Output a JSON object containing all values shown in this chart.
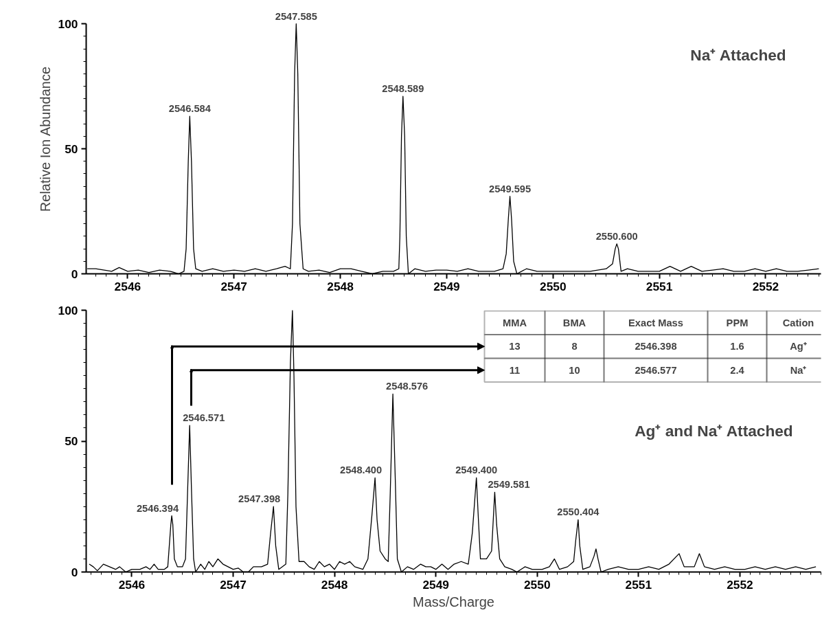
{
  "chart_data": [
    {
      "type": "line",
      "title": "Na⁺ Attached",
      "ylabel": "Relative Ion Abundance",
      "xlim": [
        2545.61,
        2552.52
      ],
      "ylim": [
        0,
        100
      ],
      "xticks": [
        2546,
        2547,
        2548,
        2549,
        2550,
        2551,
        2552
      ],
      "yticks": [
        0,
        50,
        100
      ],
      "grid": false,
      "marker": "none",
      "line_style": "solid",
      "series": [
        {
          "color": "#000000",
          "x": [
            2545.62,
            2545.7,
            2545.78,
            2545.85,
            2545.92,
            2546.0,
            2546.1,
            2546.2,
            2546.3,
            2546.4,
            2546.48,
            2546.53,
            2546.55,
            2546.57,
            2546.584,
            2546.6,
            2546.62,
            2546.64,
            2546.7,
            2546.8,
            2546.9,
            2547.0,
            2547.1,
            2547.2,
            2547.3,
            2547.4,
            2547.48,
            2547.53,
            2547.55,
            2547.57,
            2547.585,
            2547.6,
            2547.62,
            2547.65,
            2547.7,
            2547.8,
            2547.9,
            2548.0,
            2548.1,
            2548.2,
            2548.3,
            2548.4,
            2548.5,
            2548.55,
            2548.56,
            2548.575,
            2548.589,
            2548.605,
            2548.62,
            2548.64,
            2548.7,
            2548.8,
            2548.9,
            2549.0,
            2549.1,
            2549.2,
            2549.3,
            2549.45,
            2549.53,
            2549.56,
            2549.58,
            2549.595,
            2549.61,
            2549.63,
            2549.66,
            2549.75,
            2549.85,
            2549.95,
            2550.05,
            2550.2,
            2550.35,
            2550.5,
            2550.56,
            2550.585,
            2550.6,
            2550.615,
            2550.64,
            2550.7,
            2550.8,
            2550.9,
            2551.0,
            2551.1,
            2551.2,
            2551.3,
            2551.4,
            2551.5,
            2551.6,
            2551.7,
            2551.8,
            2551.9,
            2552.0,
            2552.1,
            2552.2,
            2552.3,
            2552.4,
            2552.5
          ],
          "values": [
            2,
            2,
            1.5,
            1,
            2.5,
            1,
            1.5,
            0.5,
            1.5,
            1,
            0,
            1,
            10,
            45,
            63,
            45,
            10,
            2,
            1,
            2,
            1,
            1.5,
            1,
            2,
            1,
            2,
            3,
            2,
            20,
            80,
            100,
            80,
            20,
            2,
            1,
            1.5,
            0.5,
            2,
            2,
            1,
            0,
            1,
            1,
            2,
            15,
            55,
            71,
            55,
            15,
            0,
            2,
            1,
            1.5,
            1.5,
            1,
            2,
            1,
            1,
            2,
            8,
            22,
            31,
            22,
            5,
            0,
            2,
            1,
            1,
            1,
            1,
            1,
            2,
            4,
            10,
            12,
            10,
            1,
            2,
            1,
            1,
            1,
            3,
            1,
            3,
            1,
            1.5,
            2,
            1,
            1,
            2,
            1,
            2,
            1,
            1,
            1.5,
            2
          ]
        }
      ],
      "annotations": [
        {
          "text": "2546.584",
          "x": 2546.584,
          "y": 63
        },
        {
          "text": "2547.585",
          "x": 2547.585,
          "y": 100
        },
        {
          "text": "2548.589",
          "x": 2548.589,
          "y": 71
        },
        {
          "text": "2549.595",
          "x": 2549.595,
          "y": 31
        },
        {
          "text": "2550.600",
          "x": 2550.6,
          "y": 12
        }
      ]
    },
    {
      "type": "line",
      "title": "Ag⁺ and Na⁺ Attached",
      "xlabel": "Mass/Charge",
      "xlim": [
        2545.55,
        2552.8
      ],
      "ylim": [
        0,
        100
      ],
      "xticks": [
        2546,
        2547,
        2548,
        2549,
        2550,
        2551,
        2552
      ],
      "yticks": [
        0,
        50,
        100
      ],
      "grid": false,
      "marker": "none",
      "line_style": "solid",
      "series": [
        {
          "color": "#000000",
          "x": [
            2545.58,
            2545.62,
            2545.66,
            2545.72,
            2545.78,
            2545.84,
            2545.88,
            2545.94,
            2546.0,
            2546.08,
            2546.14,
            2546.18,
            2546.22,
            2546.26,
            2546.32,
            2546.355,
            2546.37,
            2546.385,
            2546.394,
            2546.405,
            2546.42,
            2546.45,
            2546.5,
            2546.53,
            2546.55,
            2546.571,
            2546.59,
            2546.61,
            2546.63,
            2546.68,
            2546.72,
            2546.76,
            2546.8,
            2546.85,
            2546.9,
            2546.95,
            2547.0,
            2547.05,
            2547.1,
            2547.15,
            2547.2,
            2547.28,
            2547.34,
            2547.37,
            2547.398,
            2547.42,
            2547.45,
            2547.52,
            2547.54,
            2547.565,
            2547.585,
            2547.6,
            2547.62,
            2547.65,
            2547.7,
            2547.75,
            2547.8,
            2547.85,
            2547.9,
            2547.95,
            2548.0,
            2548.05,
            2548.1,
            2548.15,
            2548.2,
            2548.28,
            2548.33,
            2548.37,
            2548.4,
            2548.42,
            2548.45,
            2548.5,
            2548.53,
            2548.55,
            2548.576,
            2548.6,
            2548.62,
            2548.66,
            2548.72,
            2548.78,
            2548.85,
            2548.9,
            2548.95,
            2549.0,
            2549.06,
            2549.12,
            2549.18,
            2549.25,
            2549.32,
            2549.36,
            2549.4,
            2549.42,
            2549.44,
            2549.5,
            2549.55,
            2549.581,
            2549.6,
            2549.63,
            2549.68,
            2549.75,
            2549.8,
            2549.88,
            2549.95,
            2550.05,
            2550.12,
            2550.17,
            2550.22,
            2550.3,
            2550.36,
            2550.38,
            2550.404,
            2550.42,
            2550.45,
            2550.52,
            2550.56,
            2550.58,
            2550.6,
            2550.63,
            2550.7,
            2550.8,
            2550.9,
            2551.0,
            2551.1,
            2551.2,
            2551.3,
            2551.4,
            2551.45,
            2551.55,
            2551.6,
            2551.65,
            2551.75,
            2551.85,
            2551.95,
            2552.05,
            2552.15,
            2552.25,
            2552.35,
            2552.45,
            2552.55,
            2552.65,
            2552.75
          ],
          "values": [
            3,
            2,
            0.5,
            3,
            2,
            1,
            2,
            0,
            1,
            1,
            2,
            1,
            3,
            1,
            1,
            2,
            10,
            18,
            21.5,
            18,
            5,
            2,
            2,
            5,
            30,
            56,
            30,
            5,
            0,
            3,
            1,
            4,
            2,
            5,
            3,
            2,
            1,
            1.5,
            0,
            0,
            2,
            2,
            3,
            15,
            25,
            10,
            1,
            3,
            30,
            80,
            100,
            75,
            25,
            4,
            4,
            2,
            1,
            4,
            2,
            3,
            1,
            4,
            3,
            4,
            2,
            1,
            5,
            22,
            36,
            20,
            8,
            5,
            4,
            30,
            68,
            35,
            5,
            0,
            2,
            1,
            3,
            2,
            2,
            1,
            3,
            1,
            3,
            4,
            3,
            15,
            36,
            20,
            5,
            5,
            8,
            30.5,
            18,
            5,
            2,
            1,
            0,
            2,
            1,
            1,
            2,
            5,
            1,
            2,
            4,
            12,
            20,
            10,
            1,
            2,
            6,
            8.8,
            5,
            0,
            1,
            2,
            1,
            1,
            2,
            1,
            3,
            7,
            2,
            2,
            7,
            2,
            1,
            2,
            1,
            1,
            2,
            1,
            2,
            1,
            2,
            1,
            2
          ]
        }
      ],
      "annotations": [
        {
          "text": "2546.394",
          "x": 2546.394,
          "y": 21.5
        },
        {
          "text": "2546.571",
          "x": 2546.571,
          "y": 56
        },
        {
          "text": "2547.398",
          "x": 2547.398,
          "y": 25
        },
        {
          "text": "2548.400",
          "x": 2548.4,
          "y": 36
        },
        {
          "text": "2548.576",
          "x": 2548.576,
          "y": 68
        },
        {
          "text": "2549.400",
          "x": 2549.4,
          "y": 36
        },
        {
          "text": "2549.581",
          "x": 2549.581,
          "y": 30.5
        },
        {
          "text": "2550.404",
          "x": 2550.404,
          "y": 20
        },
        "MMA",
        "BMA",
        "Exact Mass",
        "PPM",
        "Cation",
        "13",
        "8",
        "2546.398",
        "1.6",
        "Ag⁺",
        "11",
        "10",
        "2546.577",
        "2.4",
        "Na⁺"
      ]
    }
  ]
}
